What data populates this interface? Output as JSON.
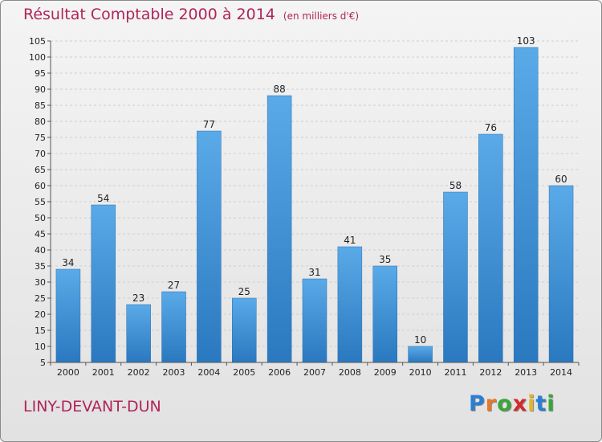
{
  "chart_data": {
    "type": "bar",
    "title": "Résultat Comptable 2000 à 2014",
    "unit": "(en milliers d'€)",
    "categories": [
      "2000",
      "2001",
      "2002",
      "2003",
      "2004",
      "2005",
      "2006",
      "2007",
      "2008",
      "2009",
      "2010",
      "2011",
      "2012",
      "2013",
      "2014"
    ],
    "values": [
      34,
      54,
      23,
      27,
      77,
      25,
      88,
      31,
      41,
      35,
      10,
      58,
      76,
      103,
      60
    ],
    "data_labels": [
      "34",
      "54",
      "23",
      "27",
      "77",
      "25",
      "88",
      "31",
      "41",
      "35",
      "10",
      "58",
      "76",
      "103",
      "60"
    ],
    "yticks": [
      "5",
      "10",
      "15",
      "20",
      "25",
      "30",
      "35",
      "40",
      "45",
      "50",
      "55",
      "60",
      "65",
      "70",
      "75",
      "80",
      "85",
      "90",
      "95",
      "100",
      "105"
    ],
    "ylim": [
      5,
      105
    ],
    "grid": true,
    "legend": "none",
    "bar_color": "#3d8fd6"
  },
  "town": "LINY-DEVANT-DUN",
  "logo": {
    "letters": [
      "P",
      "r",
      "o",
      "x",
      "i",
      "t",
      "i"
    ],
    "colors": [
      "#2a7fd4",
      "#e9772a",
      "#3aa63a",
      "#d42a2a",
      "#e0b52a",
      "#2a7fd4",
      "#3aa63a"
    ]
  }
}
